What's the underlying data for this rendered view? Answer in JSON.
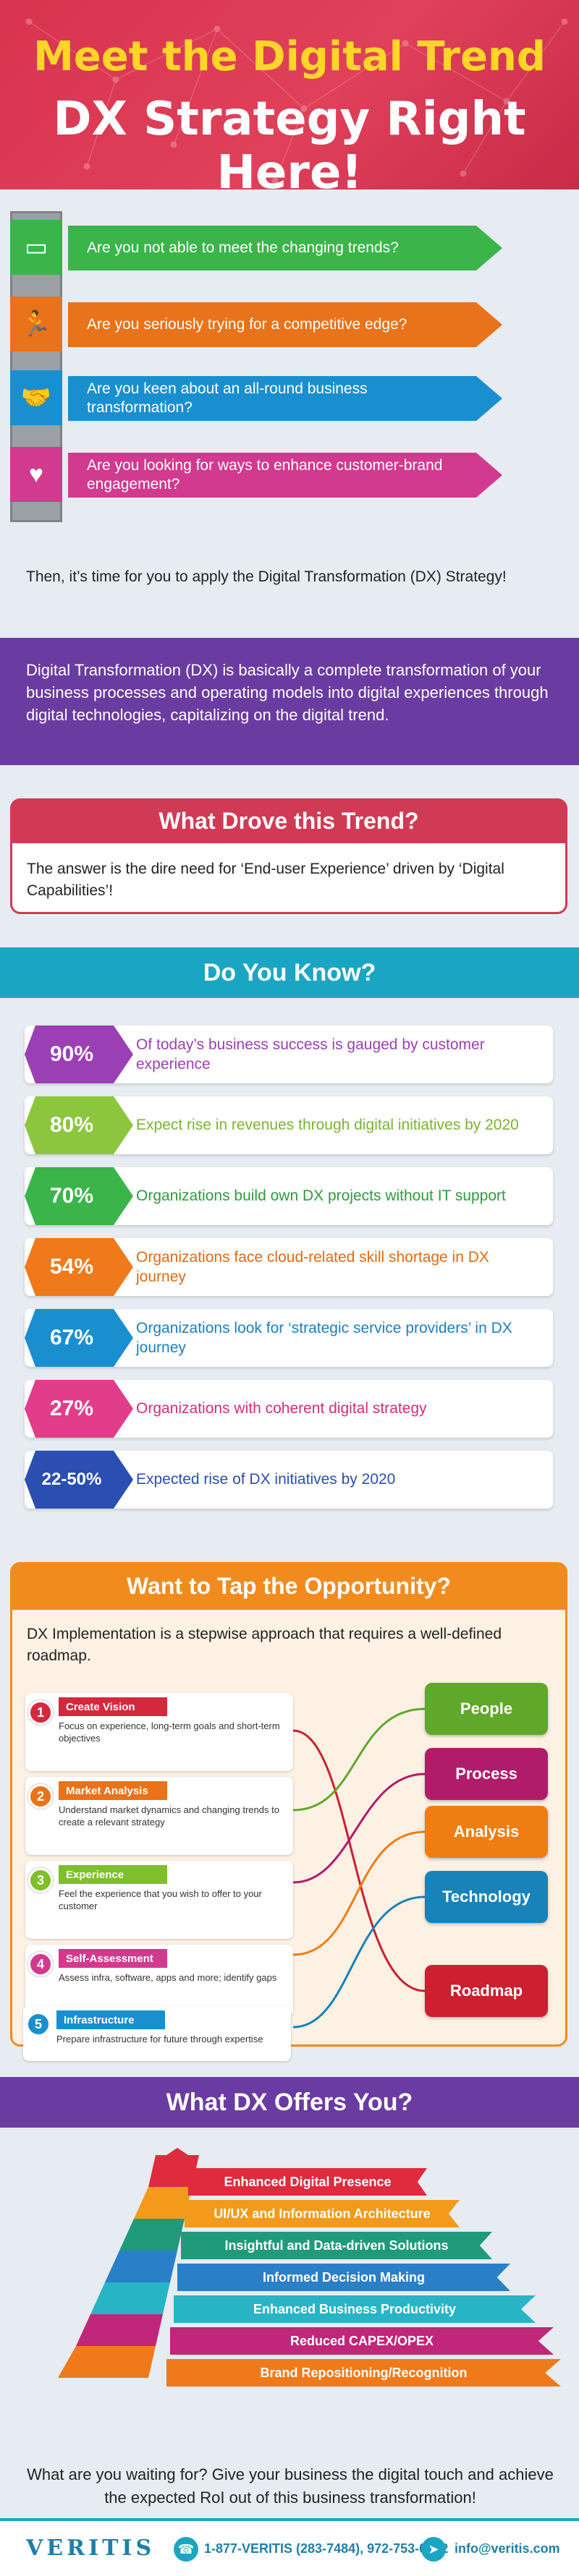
{
  "hero": {
    "title_line1": "Meet the Digital Trend",
    "title_line2": "DX Strategy Right Here!"
  },
  "questions": {
    "items": [
      {
        "text": "Are you not able to meet the changing trends?",
        "color": "#3bb54a",
        "icon": "presentation-board-icon"
      },
      {
        "text": "Are you seriously trying for a competitive edge?",
        "color": "#e8731a",
        "icon": "running-person-icon"
      },
      {
        "text": "Are you keen about an all-round business transformation?",
        "color": "#1a8fd0",
        "icon": "handshake-icon"
      },
      {
        "text": "Are you looking for ways to enhance customer-brand engagement?",
        "color": "#d13a8e",
        "icon": "hands-heart-icon"
      }
    ],
    "note": "Then, it’s time for you to apply the Digital Transformation (DX) Strategy!"
  },
  "dx_definition": "Digital Transformation (DX) is basically a complete transformation of your business processes and operating models into digital experiences through digital technologies, capitalizing on the digital trend.",
  "drove": {
    "heading": "What Drove this Trend?",
    "text": "The answer is the dire need for ‘End-user Experience’ driven by ‘Digital Capabilities’!"
  },
  "do_you_know": {
    "heading": "Do You Know?",
    "stats": [
      {
        "pct": "90%",
        "text": "Of today’s business success is gauged by customer experience",
        "color": "#9b3fb5"
      },
      {
        "pct": "80%",
        "text": "Expect rise in revenues through digital initiatives by 2020",
        "color": "#8cc63f"
      },
      {
        "pct": "70%",
        "text": "Organizations build own DX projects without IT support",
        "color": "#3bb54a"
      },
      {
        "pct": "54%",
        "text": "Organizations face cloud-related skill shortage in DX journey",
        "color": "#f07a1a"
      },
      {
        "pct": "67%",
        "text": "Organizations look for ‘strategic service providers’ in DX journey",
        "color": "#1a8fd0"
      },
      {
        "pct": "27%",
        "text": "Organizations with coherent digital strategy",
        "color": "#e23d8b"
      },
      {
        "pct": "22-50%",
        "text": "Expected rise of DX initiatives by 2020",
        "color": "#2a4fb0"
      }
    ]
  },
  "opportunity": {
    "heading": "Want to Tap the Opportunity?",
    "intro": "DX Implementation is a stepwise approach that requires a well-defined roadmap.",
    "steps": [
      {
        "num": "1",
        "title": "Create Vision",
        "desc": "Focus on experience, long-term goals and short-term objectives",
        "color": "#d6283c"
      },
      {
        "num": "2",
        "title": "Market Analysis",
        "desc": "Understand market dynamics and changing trends to create a relevant strategy",
        "color": "#e8731a"
      },
      {
        "num": "3",
        "title": "Experience",
        "desc": "Feel the experience that you wish to offer to your customer",
        "color": "#7fbf2a"
      },
      {
        "num": "4",
        "title": "Self-Assessment",
        "desc": "Assess infra, software, apps and more; identify gaps",
        "color": "#d13a8e"
      },
      {
        "num": "5",
        "title": "Infrastructure",
        "desc": "Prepare infrastructure for future through expertise",
        "color": "#1a8fd0"
      }
    ],
    "pillars": [
      {
        "label": "People",
        "color": "#5fa82a"
      },
      {
        "label": "Process",
        "color": "#b01c6a"
      },
      {
        "label": "Analysis",
        "color": "#ee7d12"
      },
      {
        "label": "Technology",
        "color": "#1883b8"
      },
      {
        "label": "Roadmap",
        "color": "#cc1f2f"
      }
    ]
  },
  "offers": {
    "heading": "What DX Offers You?",
    "items": [
      {
        "label": "Enhanced Digital Presence",
        "color": "#e02a3e"
      },
      {
        "label": "UI/UX and Information Architecture",
        "color": "#f39a1a"
      },
      {
        "label": "Insightful and Data-driven Solutions",
        "color": "#1f9a7a"
      },
      {
        "label": "Informed Decision Making",
        "color": "#2a7fc9"
      },
      {
        "label": "Enhanced Business Productivity",
        "color": "#27b5c6"
      },
      {
        "label": "Reduced CAPEX/OPEX",
        "color": "#c0267a"
      },
      {
        "label": "Brand Repositioning/Recognition",
        "color": "#f07a1a"
      }
    ],
    "closing": "What are you waiting for? Give your business the digital touch and achieve the expected RoI out of this business transformation!"
  },
  "footer": {
    "logo": "VERITIS",
    "phone": "1-877-VERITIS (283-7484), 972-753-0022",
    "email": "info@veritis.com"
  }
}
